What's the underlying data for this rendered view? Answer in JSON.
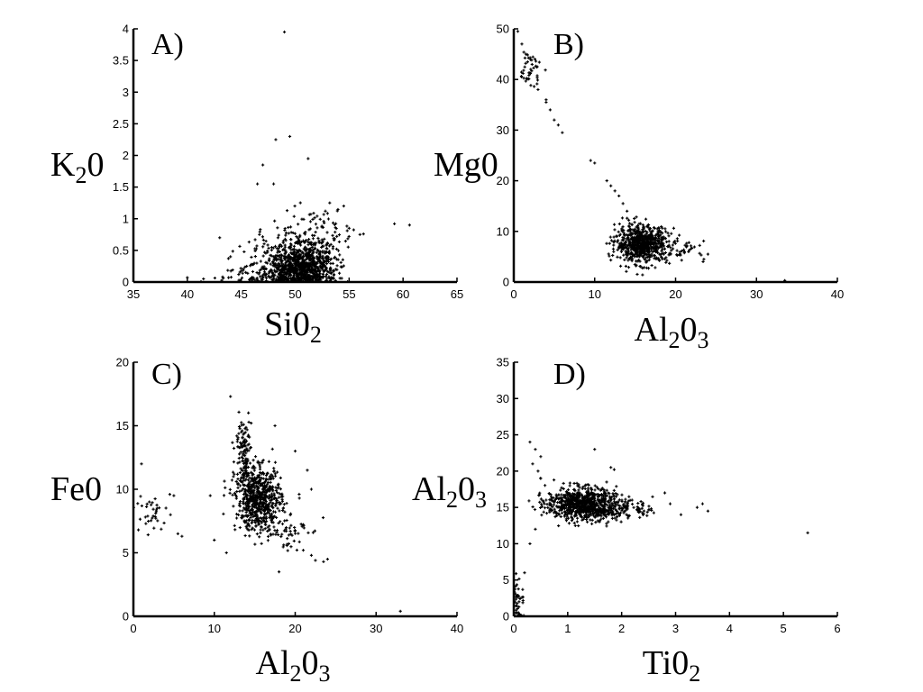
{
  "chart_data": [
    {
      "type": "scatter",
      "panel_label": "A)",
      "xlabel": {
        "main": "Si0",
        "sub": "2"
      },
      "ylabel": {
        "main": "K",
        "sub": "2",
        "tail": "0"
      },
      "xlim": [
        35,
        65
      ],
      "ylim": [
        0,
        4
      ],
      "xticks": [
        "35",
        "40",
        "45",
        "50",
        "55",
        "60",
        "65"
      ],
      "yticks": [
        "0",
        "0.5",
        "1",
        "1.5",
        "2",
        "2.5",
        "3",
        "3.5",
        "4"
      ],
      "grid": false,
      "clusters": [
        {
          "cx": 50.5,
          "cy": 0.22,
          "sx": 1.6,
          "sy": 0.17,
          "n": 900
        },
        {
          "cx": 50.5,
          "cy": 0.6,
          "sx": 2.0,
          "sy": 0.15,
          "n": 160
        },
        {
          "cx": 52.0,
          "cy": 0.95,
          "sx": 1.8,
          "sy": 0.15,
          "n": 40
        },
        {
          "cx": 46.5,
          "cy": 0.1,
          "sx": 2.2,
          "sy": 0.1,
          "n": 90
        }
      ],
      "points": [
        {
          "x": 49.0,
          "y": 3.95
        },
        {
          "x": 49.5,
          "y": 2.3
        },
        {
          "x": 48.2,
          "y": 2.25
        },
        {
          "x": 51.2,
          "y": 1.95
        },
        {
          "x": 47.0,
          "y": 1.85
        },
        {
          "x": 48.0,
          "y": 1.55
        },
        {
          "x": 46.5,
          "y": 1.55
        },
        {
          "x": 59.2,
          "y": 0.92
        },
        {
          "x": 60.6,
          "y": 0.9
        },
        {
          "x": 55.0,
          "y": 0.85
        },
        {
          "x": 56.0,
          "y": 0.75
        },
        {
          "x": 40.0,
          "y": 0.07
        },
        {
          "x": 41.5,
          "y": 0.05
        },
        {
          "x": 43.0,
          "y": 0.7
        },
        {
          "x": 44.0,
          "y": 0.4
        },
        {
          "x": 53.2,
          "y": 1.25
        },
        {
          "x": 54.5,
          "y": 1.2
        }
      ]
    },
    {
      "type": "scatter",
      "panel_label": "B)",
      "xlabel": {
        "main": "Al",
        "sub": "2",
        "tail": "0",
        "sub2": "3"
      },
      "ylabel": {
        "main": "Mg0"
      },
      "xlim": [
        0,
        40
      ],
      "ylim": [
        0,
        50
      ],
      "xticks": [
        "0",
        "10",
        "20",
        "30",
        "40"
      ],
      "yticks": [
        "0",
        "10",
        "20",
        "30",
        "40",
        "50"
      ],
      "grid": false,
      "clusters": [
        {
          "cx": 15.8,
          "cy": 7.5,
          "sx": 1.6,
          "sy": 1.8,
          "n": 700
        },
        {
          "cx": 20.5,
          "cy": 6.2,
          "sx": 1.6,
          "sy": 0.9,
          "n": 50
        },
        {
          "cx": 2.0,
          "cy": 42.0,
          "sx": 0.7,
          "sy": 1.8,
          "n": 45
        }
      ],
      "points": [
        {
          "x": 0.5,
          "y": 49.5
        },
        {
          "x": 1.0,
          "y": 47.0
        },
        {
          "x": 1.5,
          "y": 45.0
        },
        {
          "x": 3.0,
          "y": 38.0
        },
        {
          "x": 4.0,
          "y": 36.0
        },
        {
          "x": 4.5,
          "y": 34.0
        },
        {
          "x": 5.0,
          "y": 32.0
        },
        {
          "x": 5.5,
          "y": 31.0
        },
        {
          "x": 6.0,
          "y": 29.5
        },
        {
          "x": 4.0,
          "y": 35.5
        },
        {
          "x": 9.5,
          "y": 24.0
        },
        {
          "x": 10.0,
          "y": 23.5
        },
        {
          "x": 11.5,
          "y": 20.0
        },
        {
          "x": 12.0,
          "y": 19.0
        },
        {
          "x": 12.5,
          "y": 18.0
        },
        {
          "x": 13.0,
          "y": 17.0
        },
        {
          "x": 13.5,
          "y": 15.5
        },
        {
          "x": 14.0,
          "y": 14.0
        },
        {
          "x": 23.5,
          "y": 4.5
        },
        {
          "x": 24.0,
          "y": 5.5
        },
        {
          "x": 33.5,
          "y": 0.3
        }
      ]
    },
    {
      "type": "scatter",
      "panel_label": "C)",
      "xlabel": {
        "main": "Al",
        "sub": "2",
        "tail": "0",
        "sub2": "3"
      },
      "ylabel": {
        "main": "Fe0"
      },
      "xlim": [
        0,
        40
      ],
      "ylim": [
        0,
        20
      ],
      "xticks": [
        "0",
        "10",
        "20",
        "30",
        "40"
      ],
      "yticks": [
        "0",
        "5",
        "10",
        "15",
        "20"
      ],
      "grid": false,
      "clusters": [
        {
          "cx": 15.5,
          "cy": 9.2,
          "sx": 1.4,
          "sy": 1.2,
          "n": 650
        },
        {
          "cx": 13.6,
          "cy": 13.0,
          "sx": 0.5,
          "sy": 1.3,
          "n": 120
        },
        {
          "cx": 18.5,
          "cy": 6.8,
          "sx": 1.5,
          "sy": 0.8,
          "n": 60
        },
        {
          "cx": 2.0,
          "cy": 8.0,
          "sx": 1.0,
          "sy": 0.9,
          "n": 35
        }
      ],
      "points": [
        {
          "x": 1.0,
          "y": 12.0
        },
        {
          "x": 4.5,
          "y": 9.6
        },
        {
          "x": 5.0,
          "y": 9.5
        },
        {
          "x": 5.5,
          "y": 6.5
        },
        {
          "x": 6.0,
          "y": 6.3
        },
        {
          "x": 9.5,
          "y": 9.5
        },
        {
          "x": 10.0,
          "y": 6.0
        },
        {
          "x": 12.0,
          "y": 17.3
        },
        {
          "x": 11.5,
          "y": 5.0
        },
        {
          "x": 17.5,
          "y": 15.0
        },
        {
          "x": 20.0,
          "y": 13.0
        },
        {
          "x": 21.5,
          "y": 11.5
        },
        {
          "x": 22.0,
          "y": 10.0
        },
        {
          "x": 21.0,
          "y": 5.2
        },
        {
          "x": 22.0,
          "y": 4.8
        },
        {
          "x": 22.5,
          "y": 4.4
        },
        {
          "x": 23.5,
          "y": 4.3
        },
        {
          "x": 24.0,
          "y": 4.5
        },
        {
          "x": 18.0,
          "y": 3.5
        },
        {
          "x": 33.0,
          "y": 0.4
        }
      ]
    },
    {
      "type": "scatter",
      "panel_label": "D)",
      "xlabel": {
        "main": "Ti0",
        "sub": "2"
      },
      "ylabel": {
        "main": "Al",
        "sub": "2",
        "tail": "0",
        "sub2": "3"
      },
      "xlim": [
        0,
        6
      ],
      "ylim": [
        0,
        35
      ],
      "xticks": [
        "0",
        "1",
        "2",
        "3",
        "4",
        "5",
        "6"
      ],
      "yticks": [
        "0",
        "5",
        "10",
        "15",
        "20",
        "25",
        "30",
        "35"
      ],
      "grid": false,
      "clusters": [
        {
          "cx": 1.25,
          "cy": 15.5,
          "sx": 0.32,
          "sy": 1.1,
          "n": 750
        },
        {
          "cx": 1.9,
          "cy": 14.8,
          "sx": 0.35,
          "sy": 0.7,
          "n": 150
        },
        {
          "cx": 0.08,
          "cy": 2.5,
          "sx": 0.05,
          "sy": 1.5,
          "n": 40
        }
      ],
      "points": [
        {
          "x": 0.3,
          "y": 24.0
        },
        {
          "x": 0.4,
          "y": 23.0
        },
        {
          "x": 0.5,
          "y": 22.0
        },
        {
          "x": 0.35,
          "y": 21.0
        },
        {
          "x": 0.45,
          "y": 20.0
        },
        {
          "x": 0.5,
          "y": 19.0
        },
        {
          "x": 0.2,
          "y": 6.0
        },
        {
          "x": 0.3,
          "y": 10.0
        },
        {
          "x": 0.4,
          "y": 12.0
        },
        {
          "x": 1.5,
          "y": 23.0
        },
        {
          "x": 1.8,
          "y": 20.5
        },
        {
          "x": 2.8,
          "y": 17.0
        },
        {
          "x": 2.9,
          "y": 15.5
        },
        {
          "x": 3.1,
          "y": 14.0
        },
        {
          "x": 3.4,
          "y": 15.0
        },
        {
          "x": 3.5,
          "y": 15.5
        },
        {
          "x": 3.6,
          "y": 14.5
        },
        {
          "x": 5.45,
          "y": 11.5
        }
      ]
    }
  ]
}
